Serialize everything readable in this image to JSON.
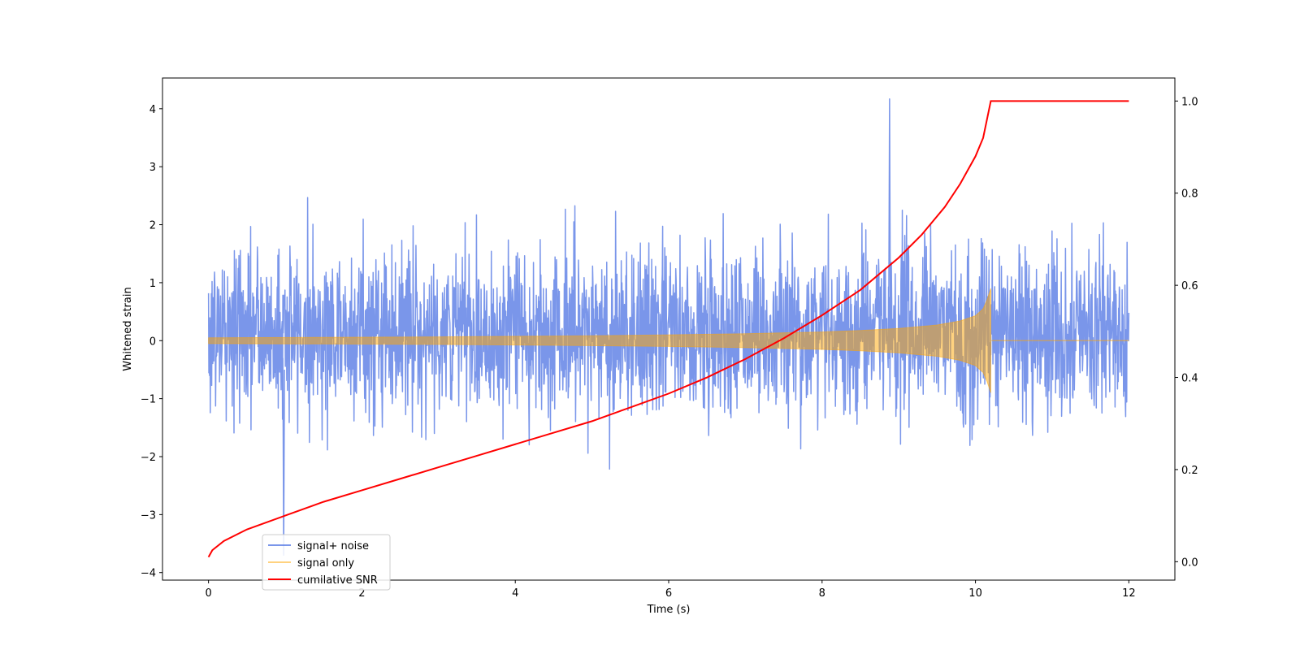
{
  "chart_data": {
    "type": "line",
    "xlabel": "Time (s)",
    "ylabel": "Whitened strain",
    "y2label": "",
    "xlim": [
      -0.6,
      12.6
    ],
    "ylim": [
      -4.13,
      4.53
    ],
    "y2lim": [
      -0.04,
      1.05
    ],
    "xticks": [
      0,
      2,
      4,
      6,
      8,
      10,
      12
    ],
    "yticks": [
      -4,
      -3,
      -2,
      -1,
      0,
      1,
      2,
      3,
      4
    ],
    "y2ticks": [
      0.0,
      0.2,
      0.4,
      0.6,
      0.8,
      1.0
    ],
    "xtick_labels": [
      "0",
      "2",
      "4",
      "6",
      "8",
      "10",
      "12"
    ],
    "ytick_labels": [
      "−4",
      "−3",
      "−2",
      "−1",
      "0",
      "1",
      "2",
      "3",
      "4"
    ],
    "y2tick_labels": [
      "0.0",
      "0.2",
      "0.4",
      "0.6",
      "0.8",
      "1.0"
    ],
    "grid": false,
    "legend_position": "lower-left",
    "series": [
      {
        "name": "signal+ noise",
        "axis": "left",
        "color": "#4169e1",
        "opacity": 0.7,
        "description_values": {
          "x_start": 0,
          "x_end": 12,
          "typical_band": [
            -1.9,
            2.3
          ],
          "max_peak": 4.17,
          "max_peak_x": 8.88,
          "min_peak": -3.7,
          "min_peak_x": 0.98
        }
      },
      {
        "name": "signal only",
        "axis": "left",
        "color": "#ffa500",
        "opacity": 0.5,
        "envelope": {
          "x": [
            0,
            1,
            2,
            3,
            4,
            5,
            6,
            7,
            7.5,
            8,
            8.5,
            9,
            9.5,
            9.8,
            10.0,
            10.1,
            10.15,
            10.2,
            10.21,
            12
          ],
          "amplitude": [
            0.05,
            0.055,
            0.06,
            0.065,
            0.075,
            0.085,
            0.1,
            0.12,
            0.135,
            0.15,
            0.175,
            0.21,
            0.27,
            0.34,
            0.43,
            0.55,
            0.7,
            0.9,
            0.0,
            0.0
          ]
        }
      },
      {
        "name": "cumilative SNR",
        "axis": "right",
        "color": "#ff0000",
        "opacity": 1.0,
        "x": [
          0,
          0.05,
          0.2,
          0.5,
          1,
          1.5,
          2,
          2.5,
          3,
          3.5,
          4,
          4.5,
          5,
          5.5,
          6,
          6.5,
          7,
          7.5,
          8,
          8.5,
          9,
          9.3,
          9.6,
          9.8,
          10.0,
          10.1,
          10.15,
          10.2,
          12
        ],
        "values": [
          0.01,
          0.025,
          0.045,
          0.07,
          0.1,
          0.13,
          0.155,
          0.18,
          0.205,
          0.23,
          0.255,
          0.28,
          0.305,
          0.335,
          0.365,
          0.4,
          0.44,
          0.485,
          0.535,
          0.59,
          0.66,
          0.71,
          0.77,
          0.82,
          0.88,
          0.92,
          0.96,
          1.0,
          1.0
        ]
      }
    ]
  }
}
